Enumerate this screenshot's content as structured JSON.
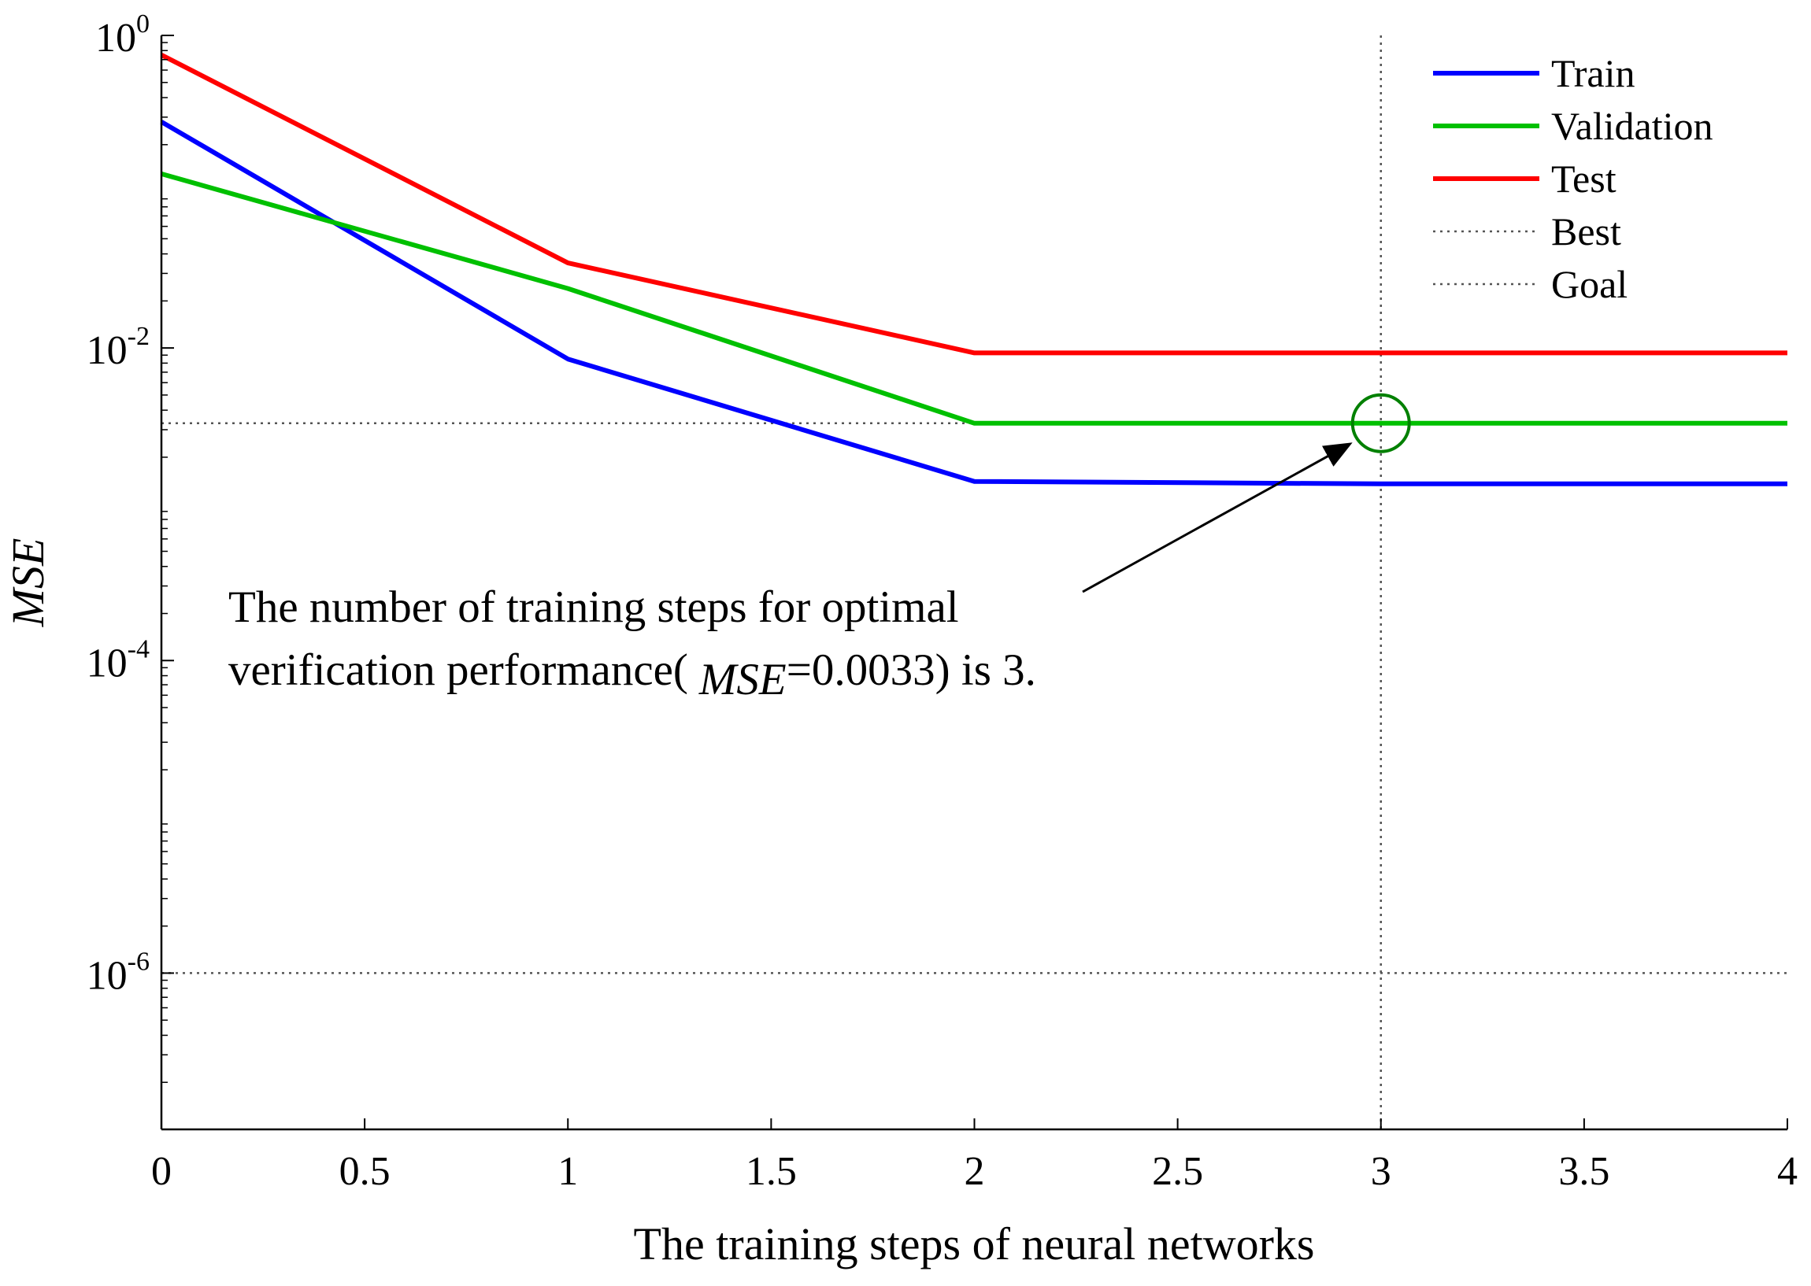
{
  "chart_data": {
    "type": "line",
    "title": "",
    "xlabel": "The training steps of neural networks",
    "ylabel": "MSE",
    "xlim": [
      0,
      4
    ],
    "ylim": [
      1e-07,
      1
    ],
    "y_scale": "log",
    "grid": false,
    "legend_position": "top-right",
    "x_ticks": [
      {
        "value": 0,
        "label": "0"
      },
      {
        "value": 0.5,
        "label": "0.5"
      },
      {
        "value": 1,
        "label": "1"
      },
      {
        "value": 1.5,
        "label": "1.5"
      },
      {
        "value": 2,
        "label": "2"
      },
      {
        "value": 2.5,
        "label": "2.5"
      },
      {
        "value": 3,
        "label": "3"
      },
      {
        "value": 3.5,
        "label": "3.5"
      },
      {
        "value": 4,
        "label": "4"
      }
    ],
    "y_ticks": [
      {
        "value": 1,
        "base": "10",
        "exp": "0"
      },
      {
        "value": 0.01,
        "base": "10",
        "exp": "-2"
      },
      {
        "value": 0.0001,
        "base": "10",
        "exp": "-4"
      },
      {
        "value": 1e-06,
        "base": "10",
        "exp": "-6"
      }
    ],
    "x": [
      0,
      1,
      2,
      3,
      4
    ],
    "series": [
      {
        "name": "Train",
        "color": "#0000ff",
        "style": "solid",
        "values": [
          0.28,
          0.0085,
          0.0014,
          0.00135,
          0.00135
        ]
      },
      {
        "name": "Validation",
        "color": "#00c000",
        "style": "solid",
        "values": [
          0.13,
          0.024,
          0.0033,
          0.0033,
          0.0033
        ]
      },
      {
        "name": "Test",
        "color": "#ff0000",
        "style": "solid",
        "values": [
          0.75,
          0.035,
          0.0093,
          0.0093,
          0.0093
        ]
      }
    ],
    "reference_lines": [
      {
        "name": "Best",
        "kind": "vertical",
        "x": 3,
        "y": 0.0033,
        "color": "#555555",
        "style": "dotted"
      },
      {
        "name": "Goal",
        "kind": "horizontal",
        "y": 1e-06,
        "color": "#555555",
        "style": "dotted"
      }
    ],
    "marker": {
      "name": "best-circle",
      "x": 3,
      "y": 0.0033,
      "color": "#008000"
    },
    "annotation": {
      "line1": "The number of training steps for optimal",
      "line2_prefix": "verification performance(",
      "line2_var": "MSE",
      "line2_suffix": "=0.0033) is 3.",
      "points_to": {
        "x": 2.92,
        "y": 0.0024
      }
    }
  }
}
